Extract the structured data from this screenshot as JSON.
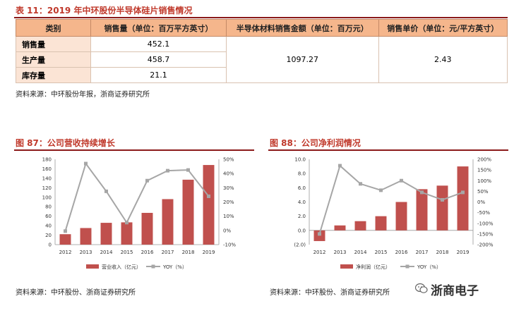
{
  "table": {
    "title": "表 11：2019 年中环股份半导体硅片销售情况",
    "headers": [
      "类别",
      "销售量（单位：百万平方英寸）",
      "半导体材料销售金额（单位：百万元）",
      "销售单价（单位：元/平方英寸）"
    ],
    "rows": [
      {
        "label": "销售量",
        "value": "452.1"
      },
      {
        "label": "生产量",
        "value": "458.7"
      },
      {
        "label": "库存量",
        "value": "21.1"
      }
    ],
    "sales_amount": "1097.27",
    "unit_price": "2.43",
    "source": "资料来源：中环股份年报，浙商证券研究所"
  },
  "chart_data": [
    {
      "type": "bar",
      "title": "图 87：公司营收持续增长",
      "categories": [
        "2012",
        "2013",
        "2014",
        "2015",
        "2016",
        "2017",
        "2018",
        "2019"
      ],
      "series": [
        {
          "name": "营业收入（亿元）",
          "kind": "bar",
          "axis": "left",
          "values": [
            22,
            35,
            46,
            47,
            67,
            96,
            137,
            168
          ]
        },
        {
          "name": "YOY（%）",
          "kind": "line",
          "axis": "right",
          "values": [
            -0.5,
            47,
            27.5,
            5.5,
            35,
            42,
            42.5,
            24
          ]
        }
      ],
      "ylim": [
        0,
        180
      ],
      "y_ticks": [
        "0",
        "20",
        "40",
        "60",
        "80",
        "100",
        "120",
        "140",
        "160",
        "180"
      ],
      "y2lim": [
        -10,
        50
      ],
      "y2_ticks": [
        "-10%",
        "0%",
        "10%",
        "20%",
        "30%",
        "40%",
        "50%"
      ],
      "legend_position": "bottom",
      "colors": {
        "bar": "#c0504d",
        "line": "#a6a6a6"
      },
      "source": "资料来源：中环股份、浙商证券研究所"
    },
    {
      "type": "bar",
      "title": "图 88：公司净利润情况",
      "categories": [
        "2012",
        "2013",
        "2014",
        "2015",
        "2016",
        "2017",
        "2018",
        "2019"
      ],
      "series": [
        {
          "name": "净利润（亿元）",
          "kind": "bar",
          "axis": "left",
          "values": [
            -1.5,
            0.7,
            1.3,
            2.0,
            4.0,
            5.8,
            6.3,
            9.0
          ]
        },
        {
          "name": "YOY（%）",
          "kind": "line",
          "axis": "right",
          "values": [
            -150,
            170,
            85,
            55,
            100,
            45,
            10,
            45
          ]
        }
      ],
      "ylim": [
        -2,
        10
      ],
      "y_ticks": [
        "(2.0)",
        "0.0",
        "2.0",
        "4.0",
        "6.0",
        "8.0",
        "10.0"
      ],
      "y2lim": [
        -200,
        200
      ],
      "y2_ticks": [
        "-200%",
        "-150%",
        "-100%",
        "-50%",
        "0%",
        "50%",
        "100%",
        "150%",
        "200%"
      ],
      "legend_position": "bottom",
      "colors": {
        "bar": "#c0504d",
        "line": "#a6a6a6"
      },
      "source": "资料来源：中环股份、浙商证券研究所"
    }
  ],
  "watermark": "浙商电子"
}
